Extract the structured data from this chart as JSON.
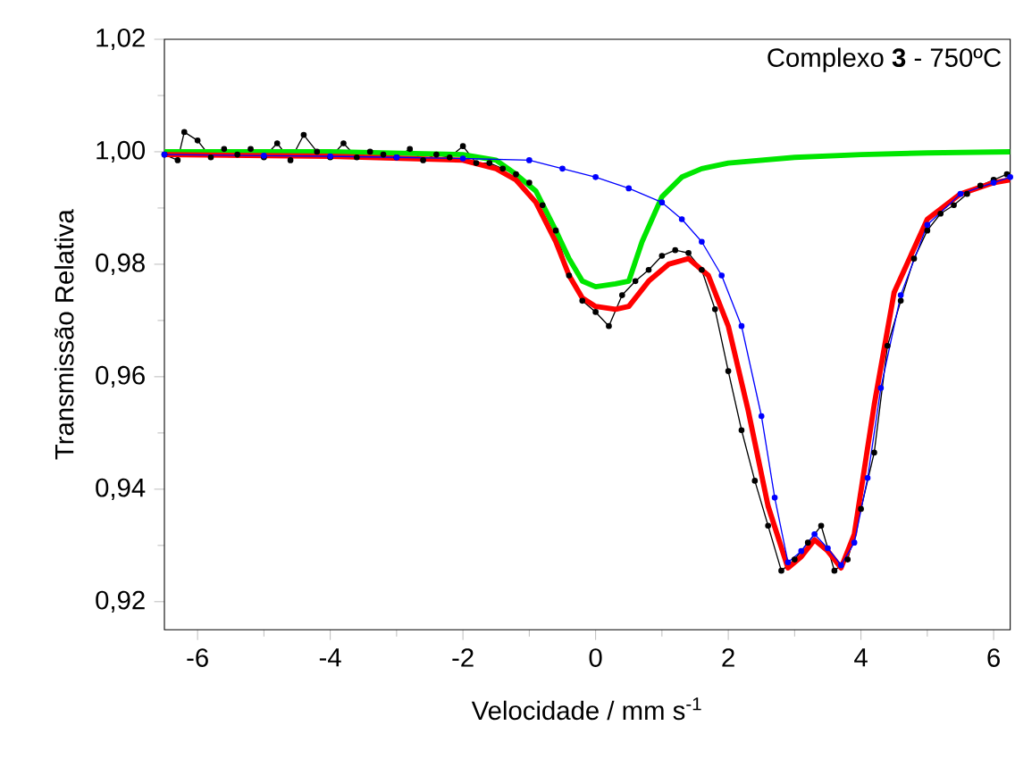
{
  "chart_data": {
    "type": "line",
    "title": "Complexo **3** - 750ºC",
    "xlabel": "Velocidade / mm s$^{-1}$",
    "ylabel": "Transmissão Relativa",
    "xlim": [
      -6.5,
      6.25
    ],
    "ylim": [
      0.915,
      1.02
    ],
    "xticks": [
      -6,
      -4,
      -2,
      0,
      2,
      4,
      6
    ],
    "yticks": [
      {
        "value": 0.92,
        "label": "0,92"
      },
      {
        "value": 0.94,
        "label": "0,94"
      },
      {
        "value": 0.96,
        "label": "0,96"
      },
      {
        "value": 0.98,
        "label": "0,98"
      },
      {
        "value": 1.0,
        "label": "1,00"
      },
      {
        "value": 1.02,
        "label": "1,02"
      }
    ],
    "series": [
      {
        "color": "#000000",
        "marker": "circle",
        "x": [
          -6.5,
          -6.3,
          -6.2,
          -6.0,
          -5.8,
          -5.6,
          -5.4,
          -5.2,
          -5.0,
          -4.8,
          -4.6,
          -4.4,
          -4.2,
          -4.0,
          -3.8,
          -3.6,
          -3.4,
          -3.2,
          -3.0,
          -2.8,
          -2.6,
          -2.4,
          -2.2,
          -2.0,
          -1.8,
          -1.6,
          -1.4,
          -1.2,
          -1.0,
          -0.8,
          -0.6,
          -0.4,
          -0.2,
          0.0,
          0.2,
          0.4,
          0.6,
          0.8,
          1.0,
          1.2,
          1.4,
          1.6,
          1.8,
          2.0,
          2.2,
          2.4,
          2.6,
          2.8,
          3.0,
          3.2,
          3.4,
          3.6,
          3.8,
          4.0,
          4.2,
          4.4,
          4.6,
          4.8,
          5.0,
          5.2,
          5.4,
          5.6,
          5.8,
          6.0,
          6.2
        ],
        "values": [
          0.9995,
          0.9985,
          1.0035,
          1.002,
          0.999,
          1.0005,
          0.9995,
          1.0005,
          0.999,
          1.0015,
          0.9985,
          1.003,
          1.0,
          0.999,
          1.0015,
          0.999,
          1.0,
          0.9995,
          0.999,
          1.0005,
          0.9985,
          0.9995,
          0.999,
          1.001,
          0.998,
          0.998,
          0.997,
          0.996,
          0.9945,
          0.9905,
          0.986,
          0.978,
          0.9735,
          0.9715,
          0.969,
          0.9745,
          0.977,
          0.979,
          0.9815,
          0.9825,
          0.982,
          0.979,
          0.972,
          0.961,
          0.9505,
          0.9415,
          0.9335,
          0.9255,
          0.9275,
          0.9305,
          0.9335,
          0.9255,
          0.9275,
          0.9365,
          0.9465,
          0.9655,
          0.9735,
          0.981,
          0.986,
          0.989,
          0.9905,
          0.9925,
          0.994,
          0.995,
          0.996
        ]
      },
      {
        "color": "#00e600",
        "x": [
          -6.5,
          -4,
          -2,
          -1.5,
          -1.2,
          -0.9,
          -0.6,
          -0.4,
          -0.2,
          0.0,
          0.3,
          0.5,
          0.7,
          1.0,
          1.3,
          1.6,
          2.0,
          3.0,
          4.0,
          5.0,
          6.25
        ],
        "values": [
          1.0,
          1.0,
          0.9995,
          0.9985,
          0.996,
          0.993,
          0.986,
          0.981,
          0.977,
          0.976,
          0.9765,
          0.977,
          0.984,
          0.992,
          0.9955,
          0.997,
          0.998,
          0.999,
          0.9995,
          0.9998,
          1.0
        ]
      },
      {
        "color": "#ff0000",
        "x": [
          -6.5,
          -4,
          -2,
          -1.5,
          -1.2,
          -0.9,
          -0.6,
          -0.4,
          -0.2,
          0.0,
          0.3,
          0.5,
          0.8,
          1.1,
          1.4,
          1.7,
          2.0,
          2.3,
          2.6,
          2.9,
          3.1,
          3.3,
          3.5,
          3.7,
          3.9,
          4.2,
          4.5,
          5.0,
          5.5,
          6.0,
          6.25
        ],
        "values": [
          0.9995,
          0.9992,
          0.9985,
          0.997,
          0.995,
          0.991,
          0.984,
          0.978,
          0.974,
          0.9725,
          0.972,
          0.9725,
          0.977,
          0.98,
          0.981,
          0.978,
          0.969,
          0.954,
          0.937,
          0.926,
          0.928,
          0.931,
          0.929,
          0.926,
          0.932,
          0.955,
          0.975,
          0.988,
          0.9925,
          0.9945,
          0.995
        ]
      },
      {
        "color": "#0000ff",
        "marker": "circle",
        "x": [
          -6.5,
          -5,
          -4,
          -3,
          -2,
          -1,
          -0.5,
          0.0,
          0.5,
          1.0,
          1.3,
          1.6,
          1.9,
          2.2,
          2.5,
          2.7,
          2.9,
          3.1,
          3.3,
          3.5,
          3.7,
          3.9,
          4.1,
          4.3,
          4.6,
          5.0,
          5.5,
          6.0,
          6.25
        ],
        "values": [
          0.9995,
          0.9993,
          0.9992,
          0.999,
          0.9988,
          0.9985,
          0.997,
          0.9955,
          0.9935,
          0.991,
          0.988,
          0.984,
          0.978,
          0.969,
          0.953,
          0.9385,
          0.927,
          0.929,
          0.932,
          0.9295,
          0.9265,
          0.9305,
          0.942,
          0.958,
          0.9745,
          0.987,
          0.9925,
          0.9945,
          0.9955
        ]
      }
    ]
  }
}
